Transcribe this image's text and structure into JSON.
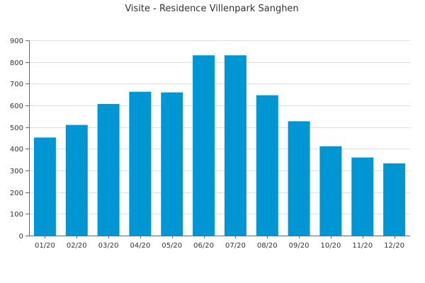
{
  "chart_data": {
    "type": "bar",
    "title": "Visite - Residence Villenpark Sanghen",
    "xlabel": "",
    "ylabel": "",
    "categories": [
      "01/20",
      "02/20",
      "03/20",
      "04/20",
      "05/20",
      "06/20",
      "07/20",
      "08/20",
      "09/20",
      "10/20",
      "11/20",
      "12/20"
    ],
    "values": [
      452,
      510,
      607,
      663,
      660,
      831,
      831,
      647,
      527,
      412,
      360,
      333
    ],
    "ylim": [
      0,
      900
    ],
    "yticks": [
      "0",
      "100",
      "200",
      "300",
      "400",
      "500",
      "600",
      "700",
      "800",
      "900"
    ],
    "grid": true,
    "bar_color": "#0095d3"
  }
}
